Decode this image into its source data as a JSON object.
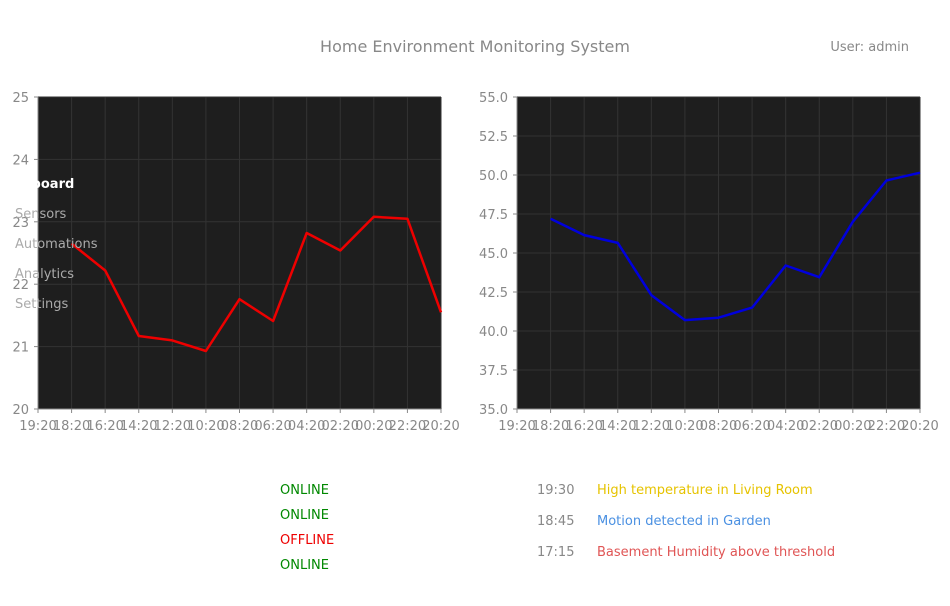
{
  "header": {
    "title": "Home Environment Monitoring System",
    "user": "User: admin"
  },
  "sidebar": {
    "items": [
      {
        "label": "Dashboard",
        "active": true
      },
      {
        "label": "Sensors",
        "active": false
      },
      {
        "label": "Automations",
        "active": false
      },
      {
        "label": "Analytics",
        "active": false
      },
      {
        "label": "Settings",
        "active": false
      }
    ]
  },
  "chart_data": [
    {
      "type": "line",
      "x": [
        "19:20",
        "18:20",
        "16:20",
        "14:20",
        "12:20",
        "10:20",
        "08:20",
        "06:20",
        "04:20",
        "02:20",
        "00:20",
        "22:20",
        "20:20"
      ],
      "series": [
        {
          "color": "#ee0000",
          "values": [
            null,
            22.65,
            22.22,
            21.17,
            21.1,
            20.93,
            21.76,
            21.41,
            22.82,
            22.54,
            23.08,
            23.05,
            21.55
          ]
        }
      ],
      "ylim": [
        20,
        25
      ],
      "yticks": [
        "20",
        "21",
        "22",
        "23",
        "24",
        "25"
      ],
      "grid": true,
      "background": "#1e1e1e"
    },
    {
      "type": "line",
      "x": [
        "19:20",
        "18:20",
        "16:20",
        "14:20",
        "12:20",
        "10:20",
        "08:20",
        "06:20",
        "04:20",
        "02:20",
        "00:20",
        "22:20",
        "20:20"
      ],
      "series": [
        {
          "color": "#0000dd",
          "values": [
            null,
            47.2,
            46.15,
            45.65,
            42.3,
            40.7,
            40.85,
            41.5,
            44.2,
            43.45,
            47.0,
            49.65,
            50.15
          ]
        }
      ],
      "ylim": [
        35,
        55
      ],
      "yticks": [
        "35.0",
        "37.5",
        "40.0",
        "42.5",
        "45.0",
        "47.5",
        "50.0",
        "52.5",
        "55.0"
      ],
      "grid": true,
      "background": "#1e1e1e"
    }
  ],
  "status": {
    "items": [
      {
        "text": "ONLINE",
        "color": "#008800"
      },
      {
        "text": "ONLINE",
        "color": "#008800"
      },
      {
        "text": "OFFLINE",
        "color": "#ee0000"
      },
      {
        "text": "ONLINE",
        "color": "#008800"
      }
    ]
  },
  "alerts": {
    "items": [
      {
        "time": "19:30",
        "message": "High temperature in Living Room",
        "color": "#e6c300"
      },
      {
        "time": "18:45",
        "message": "Motion detected in Garden",
        "color": "#4a90e2"
      },
      {
        "time": "17:15",
        "message": "Basement Humidity above threshold",
        "color": "#e05555"
      }
    ]
  }
}
